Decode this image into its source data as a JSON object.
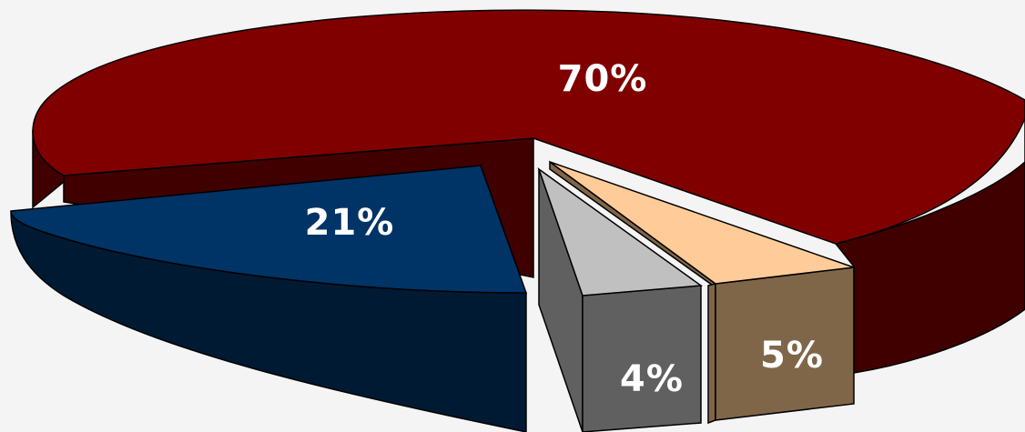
{
  "chart_data": {
    "type": "pie",
    "style": "3d-exploded",
    "values": [
      70,
      5,
      4,
      21
    ],
    "labels": [
      "70%",
      "5%",
      "4%",
      "21%"
    ],
    "colors": {
      "70": {
        "top": "#800000",
        "side": "#400000"
      },
      "5": {
        "top": "#ffcc99",
        "side": "#806648"
      },
      "4": {
        "top": "#c0c0c0",
        "side": "#606060"
      },
      "21": {
        "top": "#003366",
        "side": "#001a33"
      }
    },
    "legend": "none",
    "title": ""
  }
}
